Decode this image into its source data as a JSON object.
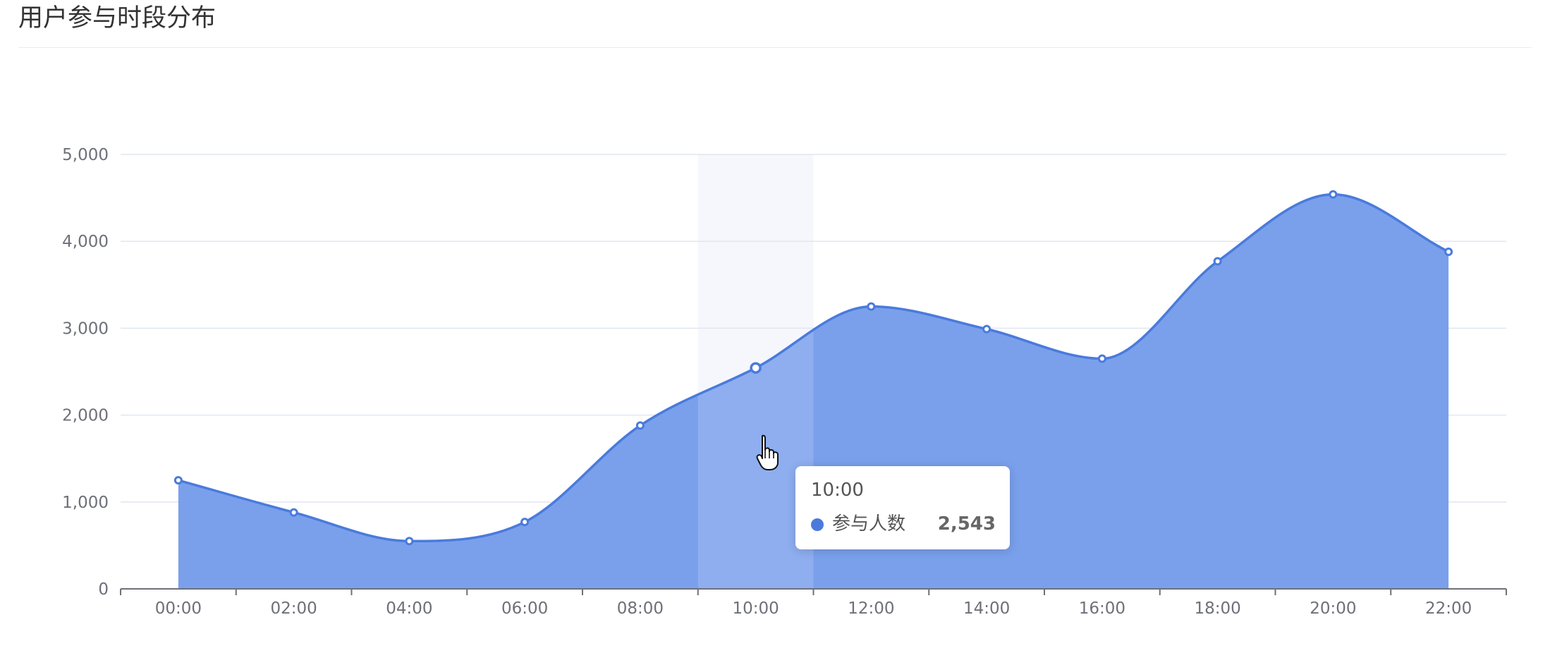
{
  "header": {
    "title": "用户参与时段分布"
  },
  "colors": {
    "line": "#4a7bdc",
    "area": "#7aa0ec",
    "area_highlight": "#8eaef0",
    "axis_pointer_band": "#f5f7fc",
    "grid": "#e0e6f1",
    "axis": "#6e7079"
  },
  "chart_data": {
    "type": "area",
    "title": "用户参与时段分布",
    "xlabel": "",
    "ylabel": "",
    "categories": [
      "00:00",
      "02:00",
      "04:00",
      "06:00",
      "08:00",
      "10:00",
      "12:00",
      "14:00",
      "16:00",
      "18:00",
      "20:00",
      "22:00"
    ],
    "series": [
      {
        "name": "参与人数",
        "values": [
          1250,
          880,
          550,
          770,
          1880,
          2543,
          3250,
          2990,
          2650,
          3770,
          4540,
          3880
        ]
      }
    ],
    "ylim": [
      0,
      5000
    ],
    "yticks": [
      0,
      1000,
      2000,
      3000,
      4000,
      5000
    ],
    "ytick_labels": [
      "0",
      "1,000",
      "2,000",
      "3,000",
      "4,000",
      "5,000"
    ],
    "grid": true,
    "smooth": true,
    "highlighted_index": 5
  },
  "tooltip": {
    "x_label": "10:00",
    "series_name": "参与人数",
    "value": "2,543",
    "icon": "circle-marker-icon"
  },
  "cursor": {
    "icon": "hand-pointer-icon"
  }
}
